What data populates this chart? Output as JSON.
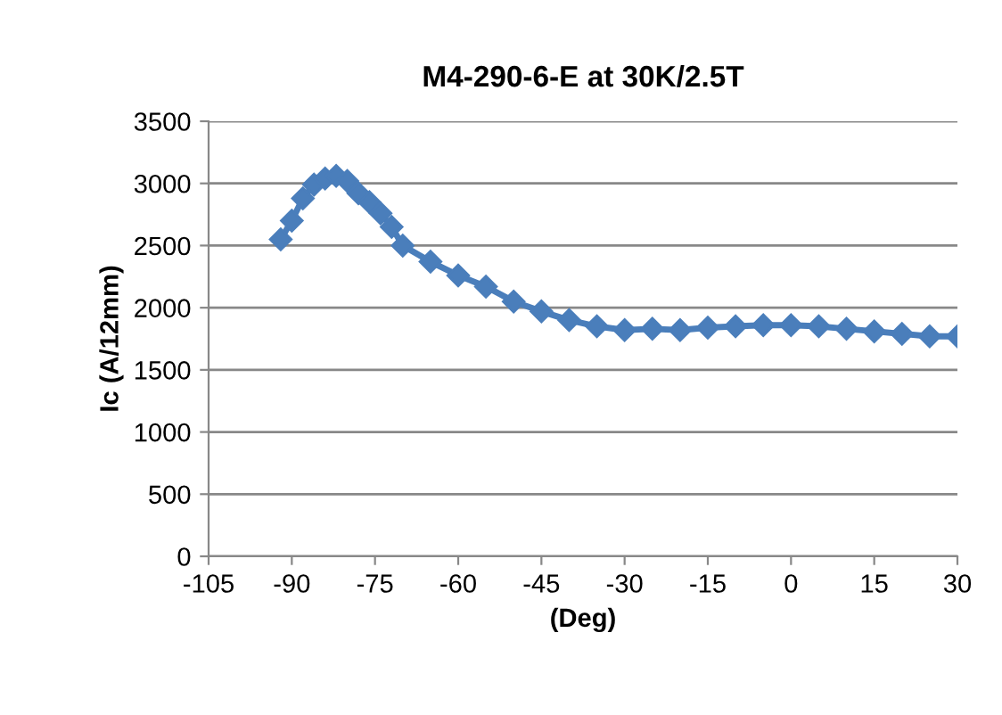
{
  "chart_data": {
    "type": "line",
    "title": "M4-290-6-E at 30K/2.5T",
    "xlabel": "(Deg)",
    "ylabel": "Ic (A/12mm)",
    "x": [
      -92,
      -90,
      -88,
      -86,
      -84,
      -82,
      -80,
      -78,
      -76,
      -74,
      -72,
      -70,
      -65,
      -60,
      -55,
      -50,
      -45,
      -40,
      -35,
      -30,
      -25,
      -20,
      -15,
      -10,
      -5,
      0,
      5,
      10,
      15,
      20,
      25,
      30
    ],
    "series": [
      {
        "color": "#4a7ebb",
        "values": [
          2550,
          2700,
          2880,
          2990,
          3040,
          3060,
          3020,
          2920,
          2850,
          2760,
          2650,
          2500,
          2370,
          2260,
          2170,
          2050,
          1970,
          1900,
          1850,
          1820,
          1830,
          1820,
          1840,
          1850,
          1860,
          1860,
          1850,
          1830,
          1810,
          1790,
          1770,
          1770
        ]
      }
    ],
    "xlim": [
      -105,
      30
    ],
    "xticks": [
      -105,
      -90,
      -75,
      -60,
      -45,
      -30,
      -15,
      0,
      15,
      30
    ],
    "ylim": [
      0,
      3500
    ],
    "yticks": [
      0,
      500,
      1000,
      1500,
      2000,
      2500,
      3000,
      3500
    ],
    "grid": "y",
    "marker": "diamond",
    "line_style": "solid",
    "legend": false
  }
}
